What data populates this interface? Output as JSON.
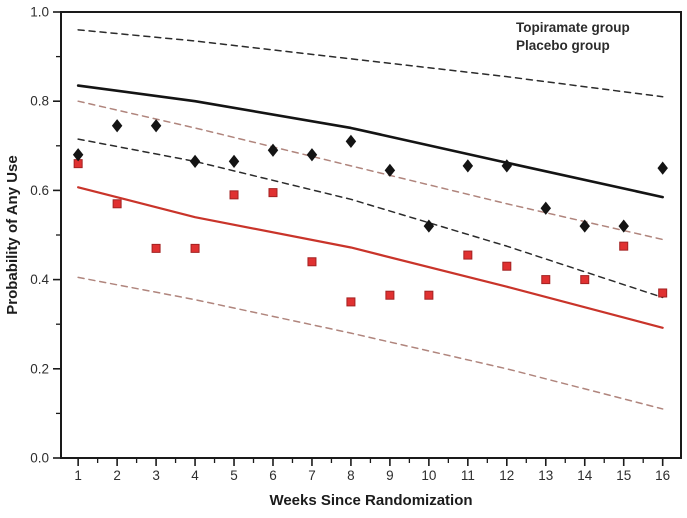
{
  "chart_data": {
    "type": "scatter",
    "title": "",
    "xlabel": "Weeks Since Randomization",
    "ylabel": "Probability of Any Use",
    "xlim": [
      0.56,
      16.47
    ],
    "ylim": [
      0.0,
      1.0
    ],
    "grid": false,
    "legend_position": "top-right-inside",
    "x_ticks": [
      1,
      2,
      3,
      4,
      5,
      6,
      7,
      8,
      9,
      10,
      11,
      12,
      13,
      14,
      15,
      16
    ],
    "x_minor_ticks": [
      1.5,
      2.5,
      3.5,
      4.5,
      5.5,
      6.5,
      7.5,
      8.5,
      9.5,
      10.5,
      11.5,
      12.5,
      13.5,
      14.5,
      15.5
    ],
    "y_ticks": [
      0.0,
      0.2,
      0.4,
      0.6,
      0.8,
      1.0
    ],
    "y_tick_labels": [
      "0.0",
      "0.2",
      "0.4",
      "0.6",
      "0.8",
      "1.0"
    ],
    "y_minor_ticks": [
      0.1,
      0.3,
      0.5,
      0.7,
      0.9
    ],
    "legend": [
      {
        "label": "Topiramate group",
        "color": "#e02b3e"
      },
      {
        "label": "Placebo group",
        "color": "#1f1f1f"
      }
    ],
    "series": [
      {
        "name": "topiramate-upper-ci",
        "group": "Topiramate group",
        "role": "upper confidence band",
        "type": "line",
        "style": "dashed",
        "color": "#b0857d",
        "width": 1.5,
        "x": [
          1,
          4,
          8,
          12,
          16
        ],
        "y": [
          0.8,
          0.74,
          0.655,
          0.57,
          0.49
        ]
      },
      {
        "name": "topiramate-lower-ci",
        "group": "Topiramate group",
        "role": "lower confidence band",
        "type": "line",
        "style": "dashed",
        "color": "#b0857d",
        "width": 1.5,
        "x": [
          1,
          4,
          8,
          12,
          16
        ],
        "y": [
          0.405,
          0.355,
          0.28,
          0.2,
          0.11
        ]
      },
      {
        "name": "placebo-upper-ci",
        "group": "Placebo group",
        "role": "upper confidence band",
        "type": "line",
        "style": "dashed",
        "color": "#2b2b2b",
        "width": 1.5,
        "x": [
          1,
          4,
          8,
          12,
          16
        ],
        "y": [
          0.96,
          0.935,
          0.895,
          0.855,
          0.81
        ]
      },
      {
        "name": "placebo-lower-ci",
        "group": "Placebo group",
        "role": "lower confidence band",
        "type": "line",
        "style": "dashed",
        "color": "#2b2b2b",
        "width": 1.5,
        "x": [
          1,
          4,
          8,
          12,
          16
        ],
        "y": [
          0.715,
          0.665,
          0.58,
          0.475,
          0.36
        ]
      },
      {
        "name": "topiramate-fitted-line",
        "group": "Topiramate group",
        "role": "fitted probability",
        "type": "line",
        "style": "solid",
        "color": "#c9342a",
        "width": 2.2,
        "x": [
          1,
          4,
          8,
          12,
          16
        ],
        "y": [
          0.607,
          0.54,
          0.472,
          0.384,
          0.292
        ]
      },
      {
        "name": "placebo-fitted-line",
        "group": "Placebo group",
        "role": "fitted probability",
        "type": "line",
        "style": "solid",
        "color": "#141414",
        "width": 2.6,
        "x": [
          1,
          4,
          8,
          12,
          16
        ],
        "y": [
          0.835,
          0.8,
          0.74,
          0.662,
          0.585
        ]
      },
      {
        "name": "topiramate-observed",
        "group": "Topiramate group",
        "role": "observed proportion",
        "type": "scatter",
        "marker": "square",
        "color": "#e03131",
        "edge": "#a32222",
        "size": 8,
        "x": [
          1,
          2,
          3,
          4,
          5,
          6,
          7,
          8,
          9,
          10,
          11,
          12,
          13,
          14,
          15,
          16
        ],
        "y": [
          0.66,
          0.57,
          0.47,
          0.47,
          0.59,
          0.595,
          0.44,
          0.35,
          0.365,
          0.365,
          0.455,
          0.43,
          0.4,
          0.4,
          0.475,
          0.37
        ]
      },
      {
        "name": "placebo-observed",
        "group": "Placebo group",
        "role": "observed proportion",
        "type": "scatter",
        "marker": "diamond",
        "color": "#141414",
        "edge": "#141414",
        "size": 10,
        "x": [
          1,
          2,
          3,
          4,
          5,
          6,
          7,
          8,
          9,
          10,
          11,
          12,
          13,
          14,
          15,
          16
        ],
        "y": [
          0.68,
          0.745,
          0.745,
          0.665,
          0.665,
          0.69,
          0.68,
          0.71,
          0.645,
          0.52,
          0.655,
          0.655,
          0.56,
          0.52,
          0.52,
          0.65
        ]
      }
    ]
  }
}
